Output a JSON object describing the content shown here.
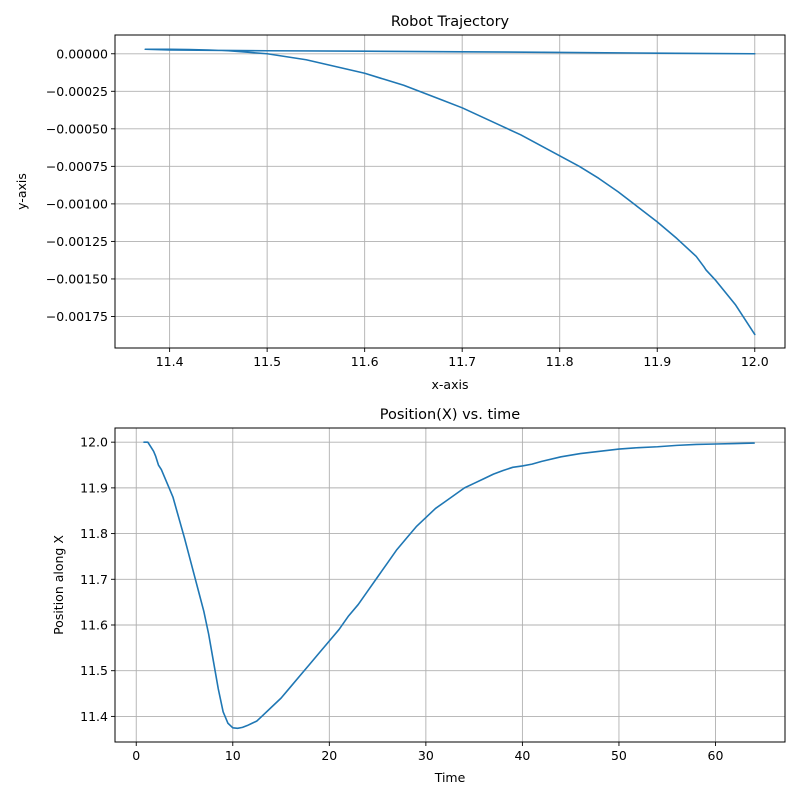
{
  "chart_data": [
    {
      "type": "line",
      "title": "Robot Trajectory",
      "xlabel": "x-axis",
      "ylabel": "y-axis",
      "xlim": [
        11.344,
        12.031
      ],
      "ylim": [
        -0.00196,
        0.000125
      ],
      "xticks": [
        11.4,
        11.5,
        11.6,
        11.7,
        11.8,
        11.9,
        12.0
      ],
      "xtick_labels": [
        "11.4",
        "11.5",
        "11.6",
        "11.7",
        "11.8",
        "11.9",
        "12.0"
      ],
      "yticks": [
        0.0,
        -0.00025,
        -0.0005,
        -0.00075,
        -0.001,
        -0.00125,
        -0.0015,
        -0.00175
      ],
      "ytick_labels": [
        "0.00000",
        "−0.00025",
        "−0.00050",
        "−0.00075",
        "−0.00100",
        "−0.00125",
        "−0.00150",
        "−0.00175"
      ],
      "grid": true,
      "color": "#1f77b4",
      "series": [
        {
          "x": [
            12.0,
            11.99,
            11.98,
            11.97,
            11.96,
            11.95,
            11.948,
            11.94,
            11.92,
            11.9,
            11.88,
            11.86,
            11.84,
            11.82,
            11.8,
            11.78,
            11.76,
            11.74,
            11.72,
            11.7,
            11.68,
            11.66,
            11.64,
            11.62,
            11.6,
            11.58,
            11.56,
            11.54,
            11.52,
            11.5,
            11.48,
            11.46,
            11.44,
            11.42,
            11.4,
            11.375,
            11.4,
            11.5,
            11.6,
            11.7,
            11.8,
            11.9,
            12.0
          ],
          "y": [
            -0.00187,
            -0.00177,
            -0.00167,
            -0.00159,
            -0.00151,
            -0.00144,
            -0.00142,
            -0.00135,
            -0.00123,
            -0.00112,
            -0.00102,
            -0.00092,
            -0.00083,
            -0.00075,
            -0.00068,
            -0.00061,
            -0.00054,
            -0.00048,
            -0.00042,
            -0.00036,
            -0.00031,
            -0.00026,
            -0.00021,
            -0.00017,
            -0.00013,
            -0.0001,
            -7e-05,
            -4e-05,
            -2e-05,
            0.0,
            1e-05,
            2e-05,
            2.5e-05,
            2.8e-05,
            3e-05,
            3e-05,
            2.5e-05,
            2e-05,
            1.7e-05,
            1.3e-05,
            9e-06,
            4e-06,
            0.0
          ]
        }
      ]
    },
    {
      "type": "line",
      "title": "Position(X) vs. time",
      "xlabel": "Time",
      "ylabel": "Position along X",
      "xlim": [
        -2.2,
        67.2
      ],
      "ylim": [
        11.344,
        12.031
      ],
      "xticks": [
        0,
        10,
        20,
        30,
        40,
        50,
        60
      ],
      "xtick_labels": [
        "0",
        "10",
        "20",
        "30",
        "40",
        "50",
        "60"
      ],
      "yticks": [
        11.4,
        11.5,
        11.6,
        11.7,
        11.8,
        11.9,
        12.0
      ],
      "ytick_labels": [
        "11.4",
        "11.5",
        "11.6",
        "11.7",
        "11.8",
        "11.9",
        "12.0"
      ],
      "grid": true,
      "color": "#1f77b4",
      "series": [
        {
          "x": [
            0.8,
            1.2,
            1.5,
            1.8,
            2.0,
            2.3,
            2.6,
            3.0,
            3.4,
            3.8,
            4.2,
            4.6,
            5.0,
            5.5,
            6.0,
            6.5,
            7.0,
            7.5,
            8.0,
            8.5,
            9.0,
            9.5,
            10.0,
            10.5,
            11.0,
            11.5,
            12.0,
            12.5,
            13.0,
            14.0,
            15.0,
            16.0,
            17.0,
            18.0,
            19.0,
            20.0,
            21.0,
            22.0,
            23.0,
            24.0,
            25.0,
            26.0,
            27.0,
            28.0,
            29.0,
            30.0,
            31.0,
            32.0,
            33.0,
            34.0,
            35.0,
            36.0,
            37.0,
            38.0,
            39.0,
            40.0,
            41.0,
            42.0,
            44.0,
            46.0,
            48.0,
            50.0,
            52.0,
            54.0,
            56.0,
            58.0,
            60.0,
            62.0,
            64.0
          ],
          "y": [
            12.0,
            12.0,
            11.99,
            11.98,
            11.97,
            11.95,
            11.94,
            11.92,
            11.9,
            11.88,
            11.85,
            11.82,
            11.79,
            11.75,
            11.71,
            11.67,
            11.63,
            11.58,
            11.52,
            11.46,
            11.41,
            11.385,
            11.375,
            11.374,
            11.376,
            11.38,
            11.385,
            11.39,
            11.4,
            11.42,
            11.44,
            11.465,
            11.49,
            11.515,
            11.54,
            11.565,
            11.59,
            11.62,
            11.645,
            11.675,
            11.705,
            11.735,
            11.765,
            11.79,
            11.815,
            11.835,
            11.855,
            11.87,
            11.885,
            11.9,
            11.91,
            11.92,
            11.93,
            11.938,
            11.945,
            11.948,
            11.952,
            11.958,
            11.968,
            11.975,
            11.98,
            11.985,
            11.988,
            11.99,
            11.993,
            11.995,
            11.996,
            11.997,
            11.998
          ]
        }
      ]
    }
  ]
}
